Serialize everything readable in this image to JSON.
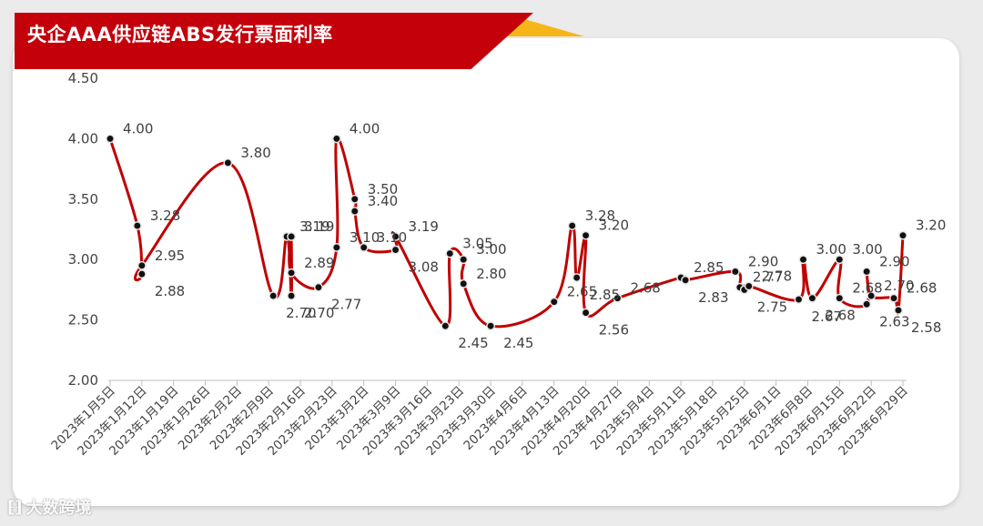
{
  "header": {
    "title": "央企AAA供应链ABS发行票面利率"
  },
  "watermark": {
    "text": "大数跨境"
  },
  "chart_data": {
    "type": "line",
    "title": "央企AAA供应链ABS发行票面利率",
    "xlabel": "",
    "ylabel": "",
    "ylim": [
      2.0,
      4.5
    ],
    "yticks": [
      "2.00",
      "2.50",
      "3.00",
      "3.50",
      "4.00",
      "4.50"
    ],
    "xlim": [
      "2023-01-05",
      "2023-06-29"
    ],
    "xticks": [
      "2023年1月5日",
      "2023年1月12日",
      "2023年1月19日",
      "2023年1月26日",
      "2023年2月2日",
      "2023年2月9日",
      "2023年2月16日",
      "2023年2月23日",
      "2023年3月2日",
      "2023年3月9日",
      "2023年3月16日",
      "2023年3月23日",
      "2023年3月30日",
      "2023年4月6日",
      "2023年4月13日",
      "2023年4月20日",
      "2023年4月27日",
      "2023年5月4日",
      "2023年5月11日",
      "2023年5月18日",
      "2023年5月25日",
      "2023年6月1日",
      "2023年6月8日",
      "2023年6月15日",
      "2023年6月22日",
      "2023年6月29日"
    ],
    "grid": false,
    "line_color": "#c00000",
    "point_color": "#111111",
    "points": [
      {
        "x": "2023-01-05",
        "y": 4.0,
        "label": "4.00"
      },
      {
        "x": "2023-01-11",
        "y": 3.28,
        "label": "3.28"
      },
      {
        "x": "2023-01-12",
        "y": 2.88,
        "label": "2.88"
      },
      {
        "x": "2023-01-12",
        "y": 2.95,
        "label": "2.95"
      },
      {
        "x": "2023-01-31",
        "y": 3.8,
        "label": "3.80"
      },
      {
        "x": "2023-02-10",
        "y": 2.7,
        "label": "2.70"
      },
      {
        "x": "2023-02-13",
        "y": 3.19,
        "label": "3.19"
      },
      {
        "x": "2023-02-14",
        "y": 2.7,
        "label": "2.70"
      },
      {
        "x": "2023-02-14",
        "y": 3.19,
        "label": "3.19"
      },
      {
        "x": "2023-02-14",
        "y": 2.89,
        "label": "2.89"
      },
      {
        "x": "2023-02-20",
        "y": 2.77,
        "label": "2.77"
      },
      {
        "x": "2023-02-24",
        "y": 3.1,
        "label": "3.10"
      },
      {
        "x": "2023-02-24",
        "y": 4.0,
        "label": "4.00"
      },
      {
        "x": "2023-02-28",
        "y": 3.5,
        "label": "3.50"
      },
      {
        "x": "2023-02-28",
        "y": 3.4,
        "label": "3.40"
      },
      {
        "x": "2023-03-02",
        "y": 3.1,
        "label": "3.10"
      },
      {
        "x": "2023-03-09",
        "y": 3.08,
        "label": "3.08"
      },
      {
        "x": "2023-03-09",
        "y": 3.19,
        "label": "3.19"
      },
      {
        "x": "2023-03-20",
        "y": 2.45,
        "label": "2.45"
      },
      {
        "x": "2023-03-21",
        "y": 3.05,
        "label": "3.05"
      },
      {
        "x": "2023-03-24",
        "y": 3.0,
        "label": "3.00"
      },
      {
        "x": "2023-03-24",
        "y": 2.8,
        "label": "2.80"
      },
      {
        "x": "2023-03-30",
        "y": 2.45,
        "label": "2.45"
      },
      {
        "x": "2023-04-13",
        "y": 2.65,
        "label": "2.65"
      },
      {
        "x": "2023-04-17",
        "y": 3.28,
        "label": "3.28"
      },
      {
        "x": "2023-04-18",
        "y": 2.85,
        "label": "2.85"
      },
      {
        "x": "2023-04-20",
        "y": 3.2,
        "label": "3.20"
      },
      {
        "x": "2023-04-20",
        "y": 2.56,
        "label": "2.56"
      },
      {
        "x": "2023-04-27",
        "y": 2.68,
        "label": "2.68"
      },
      {
        "x": "2023-05-11",
        "y": 2.85,
        "label": "2.85"
      },
      {
        "x": "2023-05-12",
        "y": 2.83,
        "label": "2.83"
      },
      {
        "x": "2023-05-23",
        "y": 2.9,
        "label": "2.90"
      },
      {
        "x": "2023-05-24",
        "y": 2.77,
        "label": "2.77"
      },
      {
        "x": "2023-05-25",
        "y": 2.75,
        "label": "2.75"
      },
      {
        "x": "2023-05-26",
        "y": 2.78,
        "label": "2.78"
      },
      {
        "x": "2023-06-06",
        "y": 2.67,
        "label": "2.67"
      },
      {
        "x": "2023-06-07",
        "y": 3.0,
        "label": "3.00"
      },
      {
        "x": "2023-06-09",
        "y": 2.68,
        "label": "2.68"
      },
      {
        "x": "2023-06-15",
        "y": 3.0,
        "label": "3.00"
      },
      {
        "x": "2023-06-15",
        "y": 2.68,
        "label": "2.68"
      },
      {
        "x": "2023-06-21",
        "y": 2.63,
        "label": "2.63"
      },
      {
        "x": "2023-06-21",
        "y": 2.9,
        "label": "2.90"
      },
      {
        "x": "2023-06-22",
        "y": 2.7,
        "label": "2.70"
      },
      {
        "x": "2023-06-27",
        "y": 2.68,
        "label": "2.68"
      },
      {
        "x": "2023-06-28",
        "y": 2.58,
        "label": "2.58"
      },
      {
        "x": "2023-06-29",
        "y": 3.2,
        "label": "3.20"
      }
    ]
  }
}
